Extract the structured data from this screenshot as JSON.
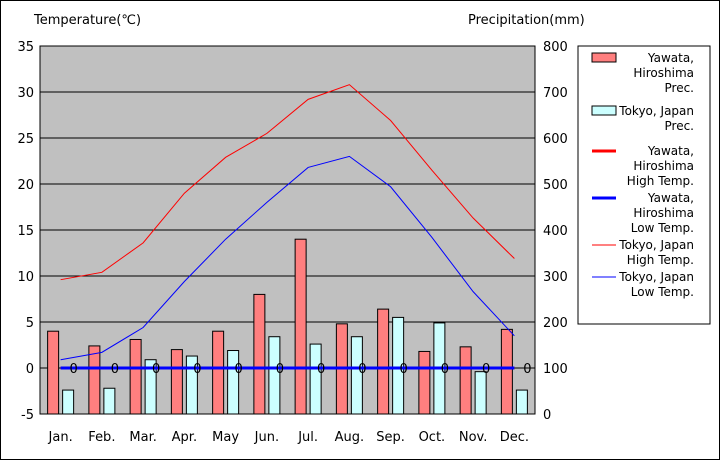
{
  "chart_data": {
    "type": "bar",
    "left_axis_title": "Temperature(℃)",
    "right_axis_title": "Precipitation(mm)",
    "categories": [
      "Jan.",
      "Feb.",
      "Mar.",
      "Apr.",
      "May",
      "Jun.",
      "Jul.",
      "Aug.",
      "Sep.",
      "Oct.",
      "Nov.",
      "Dec."
    ],
    "left_ylim": [
      -5,
      35
    ],
    "left_ticks": [
      "35",
      "30",
      "25",
      "20",
      "15",
      "10",
      "5",
      "0",
      "-5"
    ],
    "right_ylim": [
      0,
      800
    ],
    "right_ticks": [
      "800",
      "700",
      "600",
      "500",
      "400",
      "300",
      "200",
      "100",
      "0"
    ],
    "bar_series": [
      {
        "name": "Yawata, Hiroshima Prec.",
        "legend_lines": [
          "Yawata,",
          "Hiroshima",
          "Prec."
        ],
        "color": "#ff7f7f",
        "values": [
          180,
          148,
          162,
          140,
          180,
          260,
          380,
          196,
          228,
          136,
          146,
          184
        ]
      },
      {
        "name": "Tokyo, Japan Prec.",
        "legend_lines": [
          "Tokyo, Japan",
          "Prec."
        ],
        "color": "#ccffff",
        "values": [
          52,
          56,
          118,
          126,
          138,
          168,
          152,
          168,
          210,
          198,
          92,
          52
        ]
      }
    ],
    "line_series": [
      {
        "name": "Yawata, Hiroshima High Temp.",
        "legend_lines": [
          "Yawata,",
          "Hiroshima",
          "High Temp."
        ],
        "color": "#ff0000",
        "width": 3,
        "values": [
          0,
          0,
          0,
          0,
          0,
          0,
          0,
          0,
          0,
          0,
          0,
          0
        ]
      },
      {
        "name": "Yawata, Hiroshima Low Temp.",
        "legend_lines": [
          "Yawata,",
          "Hiroshima",
          "Low Temp."
        ],
        "color": "#0000ff",
        "width": 3,
        "values": [
          0,
          0,
          0,
          0,
          0,
          0,
          0,
          0,
          0,
          0,
          0,
          0
        ]
      },
      {
        "name": "Tokyo, Japan High Temp.",
        "legend_lines": [
          "Tokyo, Japan",
          "High Temp."
        ],
        "color": "#ff0000",
        "width": 1,
        "values": [
          9.6,
          10.4,
          13.6,
          19.0,
          22.9,
          25.5,
          29.2,
          30.8,
          26.9,
          21.5,
          16.3,
          11.9
        ]
      },
      {
        "name": "Tokyo, Japan Low Temp.",
        "legend_lines": [
          "Tokyo, Japan",
          "Low Temp."
        ],
        "color": "#0000ff",
        "width": 1,
        "values": [
          0.9,
          1.7,
          4.4,
          9.4,
          14.0,
          18.0,
          21.8,
          23.0,
          19.7,
          14.2,
          8.3,
          3.5
        ]
      }
    ],
    "point_labels": [
      "0",
      "0",
      "0",
      "0",
      "0",
      "0",
      "0",
      "0",
      "0",
      "0",
      "0",
      "0"
    ],
    "grid": true,
    "legend_position": "right"
  }
}
